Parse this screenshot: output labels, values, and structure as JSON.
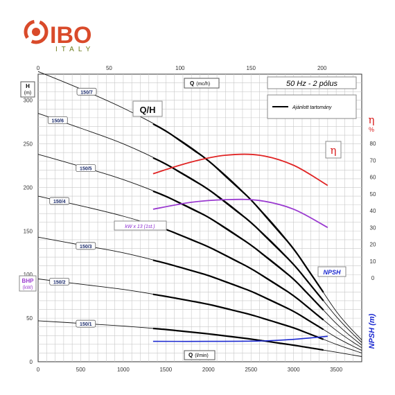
{
  "logo": {
    "brand": "IBO",
    "sub": "ITALY",
    "brand_color": "#d94a2a",
    "sub_color": "#6b7b1a"
  },
  "legend": {
    "title": "50 Hz - 2 pólus",
    "line_label": "Ajánlott tartomány"
  },
  "labels": {
    "qh": "Q/H",
    "h_axis": "H",
    "h_unit": "(m)",
    "q_top": "Q",
    "q_top_unit": "(mc/h)",
    "q_bottom": "Q",
    "q_bottom_unit": "(l/min)",
    "eta_axis": "η",
    "eta_unit": "%",
    "eta_curve": "η",
    "bhp": "BHP",
    "bhp_unit": "(kW)",
    "kw_note": "kW x 13 (1st.)",
    "npsh_curve": "NPSH",
    "npsh_axis": "NPSH (m)"
  },
  "chart_data": {
    "type": "line",
    "x_bottom": {
      "label": "Q (l/min)",
      "range": [
        0,
        3800
      ],
      "ticks": [
        0,
        500,
        1000,
        1500,
        2000,
        2500,
        3000,
        3500
      ]
    },
    "x_top": {
      "label": "Q (mc/h)",
      "range": [
        0,
        228
      ],
      "ticks": [
        0,
        50,
        100,
        150,
        200
      ]
    },
    "y_left": {
      "label": "H (m)",
      "range": [
        0,
        330
      ],
      "ticks": [
        0,
        50,
        100,
        150,
        200,
        250,
        300
      ]
    },
    "y_eta": {
      "label": "η %",
      "range": [
        0,
        80
      ],
      "ticks": [
        0,
        10,
        20,
        30,
        40,
        50,
        60,
        70,
        80
      ]
    },
    "y_npsh": {
      "label": "NPSH (m)",
      "range": [
        0,
        10
      ],
      "ticks": [
        0,
        2,
        4,
        6,
        8,
        10
      ]
    },
    "grid": true,
    "series": [
      {
        "name": "150/1",
        "x": [
          0,
          500,
          1000,
          1500,
          2000,
          2500,
          3000,
          3500,
          3800
        ],
        "y": [
          47,
          44,
          41,
          37,
          32,
          26,
          19,
          11,
          6
        ]
      },
      {
        "name": "150/2",
        "x": [
          0,
          500,
          1000,
          1500,
          2000,
          2500,
          3000,
          3500,
          3800
        ],
        "y": [
          95,
          89,
          83,
          75,
          66,
          54,
          39,
          20,
          10
        ]
      },
      {
        "name": "150/3",
        "x": [
          0,
          500,
          1000,
          1500,
          2000,
          2500,
          3000,
          3500,
          3800
        ],
        "y": [
          143,
          134,
          125,
          113,
          99,
          81,
          58,
          28,
          13
        ]
      },
      {
        "name": "150/4",
        "x": [
          0,
          500,
          1000,
          1500,
          2000,
          2500,
          3000,
          3500,
          3800
        ],
        "y": [
          190,
          179,
          167,
          152,
          132,
          107,
          76,
          36,
          16
        ]
      },
      {
        "name": "150/5",
        "x": [
          0,
          500,
          1000,
          1500,
          2000,
          2500,
          3000,
          3500,
          3800
        ],
        "y": [
          238,
          224,
          209,
          190,
          166,
          134,
          95,
          44,
          19
        ]
      },
      {
        "name": "150/6",
        "x": [
          0,
          500,
          1000,
          1500,
          2000,
          2500,
          3000,
          3500,
          3800
        ],
        "y": [
          285,
          268,
          250,
          227,
          198,
          160,
          112,
          52,
          22
        ]
      },
      {
        "name": "150/7",
        "x": [
          0,
          500,
          1000,
          1500,
          2000,
          2500,
          3000,
          3500,
          3800
        ],
        "y": [
          333,
          313,
          291,
          265,
          231,
          186,
          130,
          58,
          25
        ]
      }
    ],
    "efficiency": {
      "name": "η",
      "x": [
        1350,
        1800,
        2200,
        2600,
        3000,
        3400
      ],
      "y": [
        62,
        69,
        73,
        73,
        67,
        55
      ]
    },
    "bhp": {
      "name": "kW x 13 (1st.)",
      "x": [
        1350,
        1800,
        2200,
        2600,
        3000,
        3400
      ],
      "y": [
        175,
        183,
        186,
        185,
        175,
        154
      ]
    },
    "npsh": {
      "name": "NPSH",
      "x": [
        1350,
        2000,
        2600,
        3000,
        3400
      ],
      "y": [
        3.0,
        3.0,
        3.05,
        3.3,
        3.75
      ]
    },
    "curve_labels": [
      {
        "series": "150/7",
        "x": 570
      },
      {
        "series": "150/6",
        "x": 230
      },
      {
        "series": "150/5",
        "x": 560
      },
      {
        "series": "150/4",
        "x": 250
      },
      {
        "series": "150/3",
        "x": 560
      },
      {
        "series": "150/2",
        "x": 250
      },
      {
        "series": "150/1",
        "x": 560
      }
    ]
  }
}
